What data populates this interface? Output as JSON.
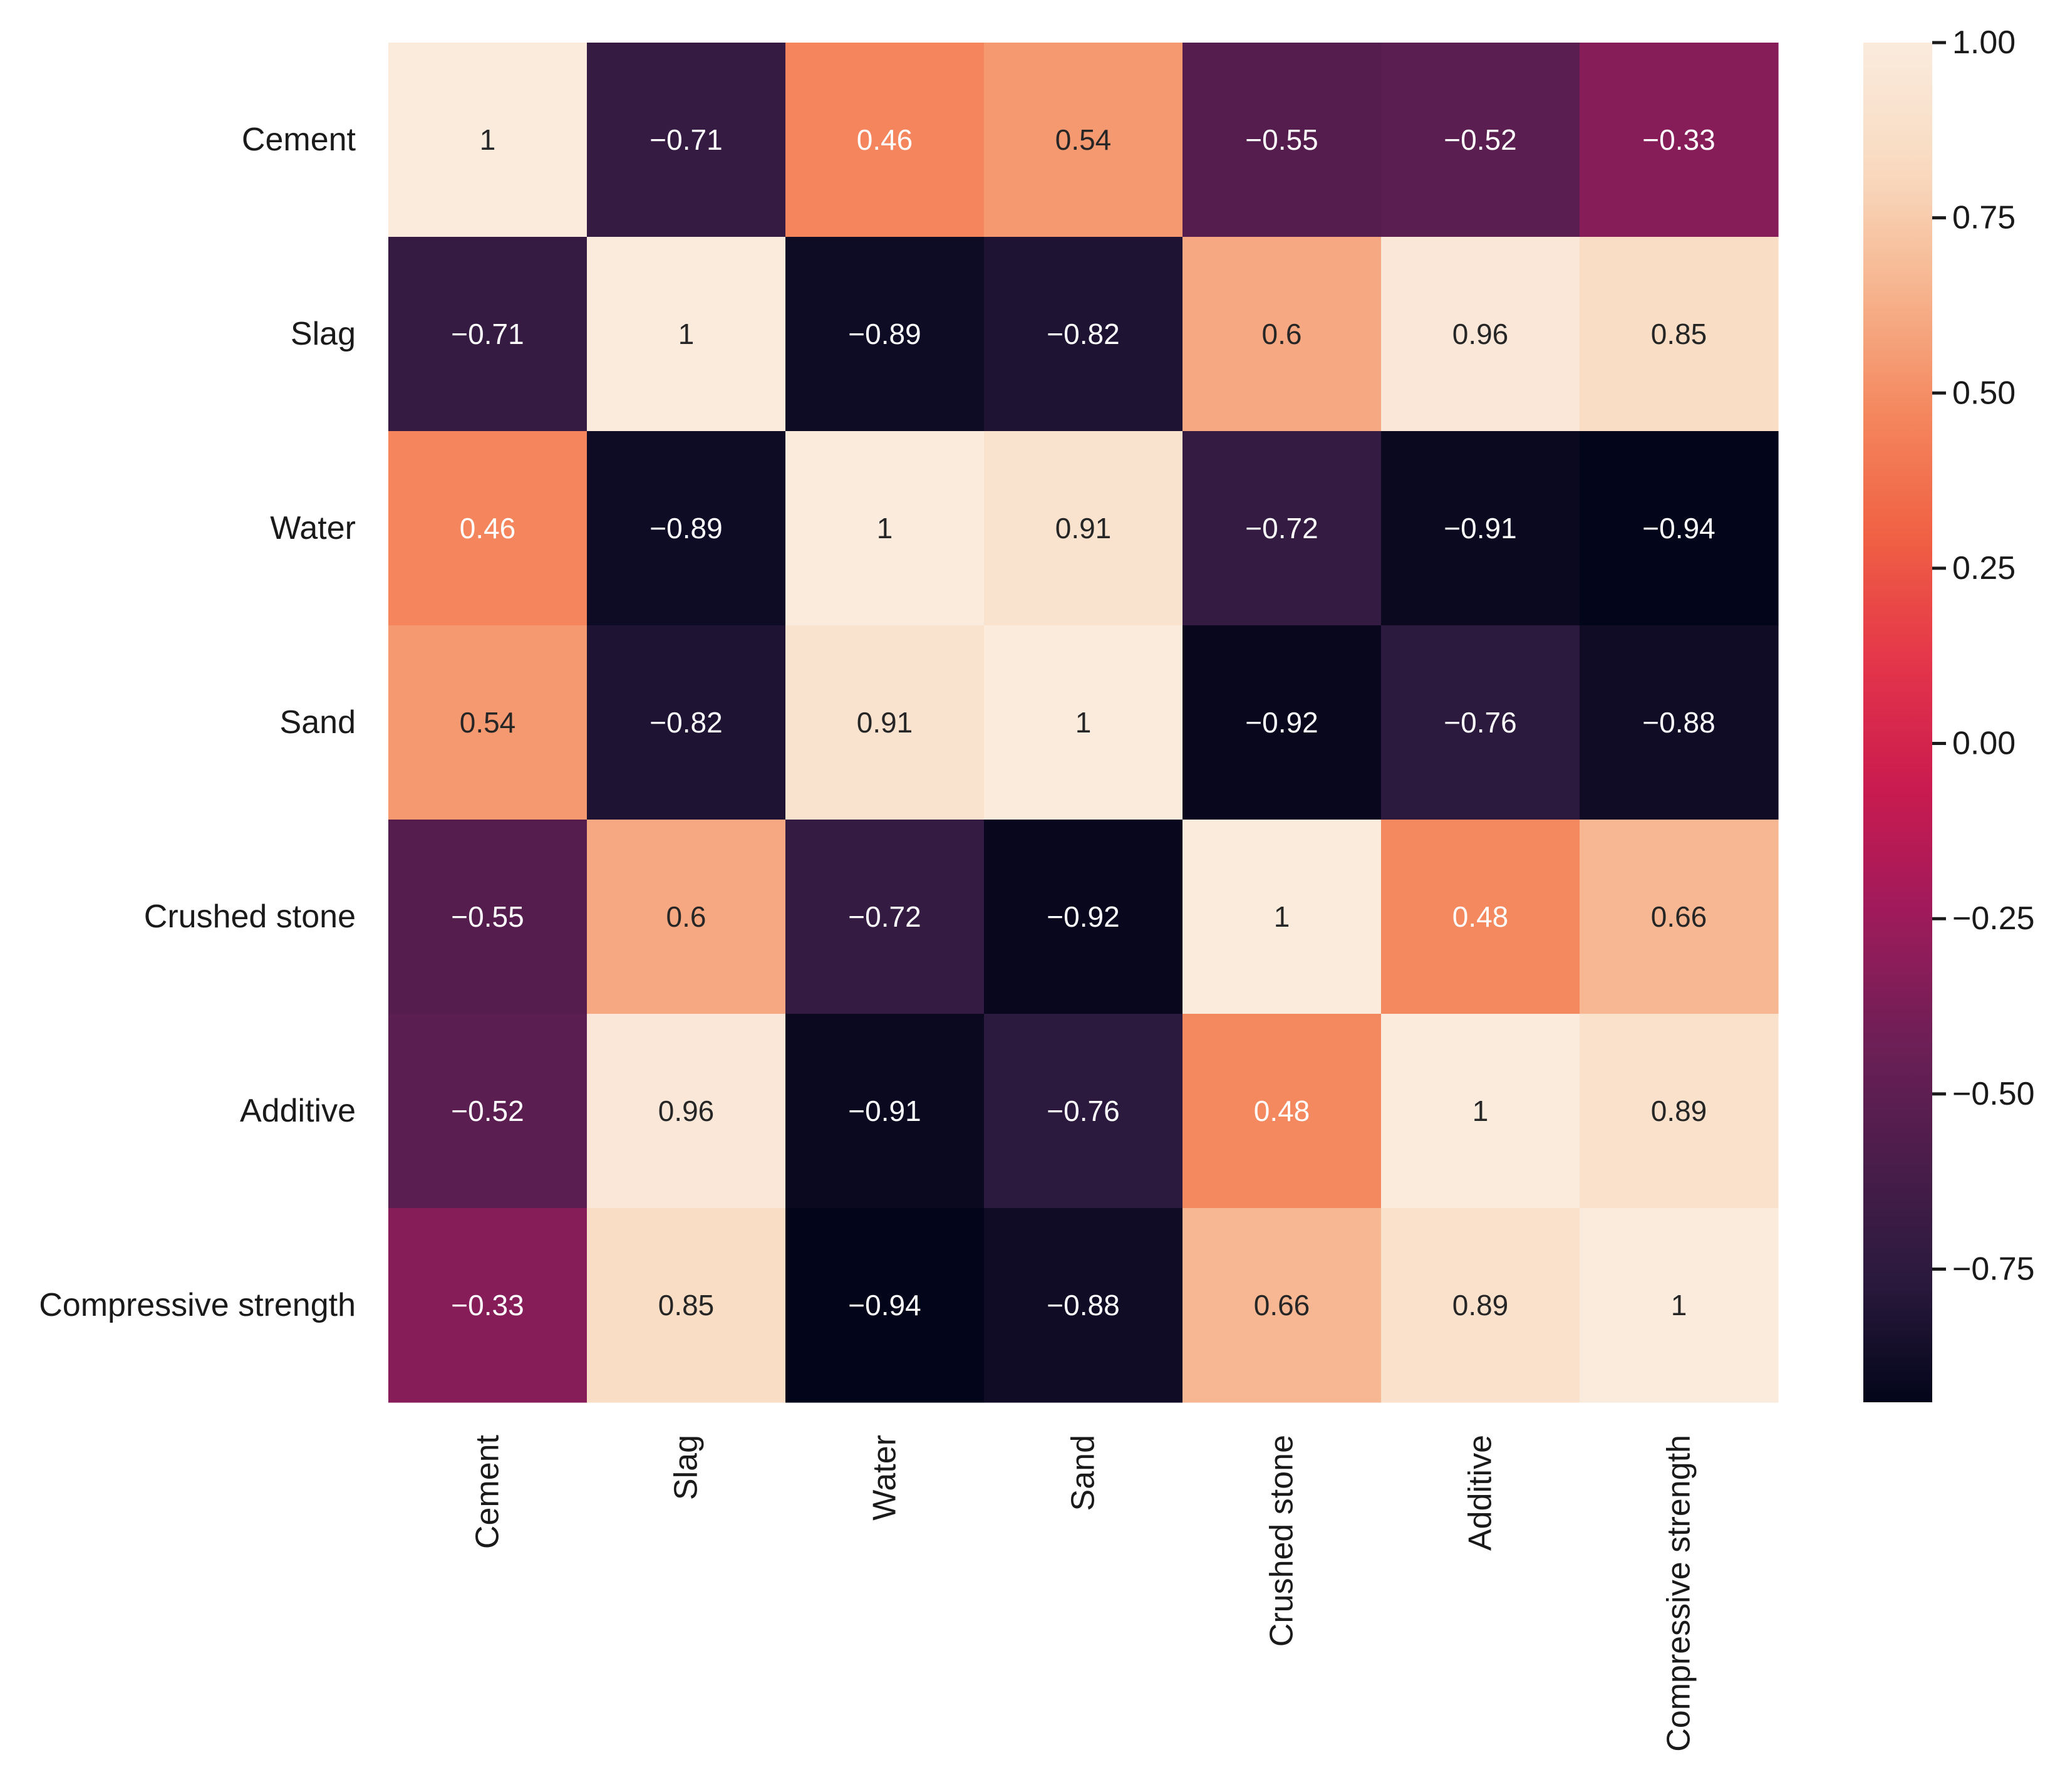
{
  "chart_data": {
    "type": "heatmap",
    "variables": [
      "Cement",
      "Slag",
      "Water",
      "Sand",
      "Crushed stone",
      "Additive",
      "Compressive strength"
    ],
    "matrix": [
      [
        1,
        -0.71,
        0.46,
        0.54,
        -0.55,
        -0.52,
        -0.33
      ],
      [
        -0.71,
        1,
        -0.89,
        -0.82,
        0.6,
        0.96,
        0.85
      ],
      [
        0.46,
        -0.89,
        1,
        0.91,
        -0.72,
        -0.91,
        -0.94
      ],
      [
        0.54,
        -0.82,
        0.91,
        1,
        -0.92,
        -0.76,
        -0.88
      ],
      [
        -0.55,
        0.6,
        -0.72,
        -0.92,
        1,
        0.48,
        0.66
      ],
      [
        -0.52,
        0.96,
        -0.91,
        -0.76,
        0.48,
        1,
        0.89
      ],
      [
        -0.33,
        0.85,
        -0.94,
        -0.88,
        0.66,
        0.89,
        1
      ]
    ],
    "annotations": [
      [
        "1",
        "−0.71",
        "0.46",
        "0.54",
        "−0.55",
        "−0.52",
        "−0.33"
      ],
      [
        "−0.71",
        "1",
        "−0.89",
        "−0.82",
        "0.6",
        "0.96",
        "0.85"
      ],
      [
        "0.46",
        "−0.89",
        "1",
        "0.91",
        "−0.72",
        "−0.91",
        "−0.94"
      ],
      [
        "0.54",
        "−0.82",
        "0.91",
        "1",
        "−0.92",
        "−0.76",
        "−0.88"
      ],
      [
        "−0.55",
        "0.6",
        "−0.72",
        "−0.92",
        "1",
        "0.48",
        "0.66"
      ],
      [
        "−0.52",
        "0.96",
        "−0.91",
        "−0.76",
        "0.48",
        "1",
        "0.89"
      ],
      [
        "−0.33",
        "0.85",
        "−0.94",
        "−0.88",
        "0.66",
        "0.89",
        "1"
      ]
    ],
    "colorbar": {
      "range": [
        -0.94,
        1.0
      ],
      "ticks": [
        1.0,
        0.75,
        0.5,
        0.25,
        0.0,
        -0.25,
        -0.5,
        -0.75
      ],
      "tick_labels": [
        "1.00",
        "0.75",
        "0.50",
        "0.25",
        "0.00",
        "−0.25",
        "−0.50",
        "−0.75"
      ],
      "colormap": "rocket",
      "colormap_stops": [
        "#03051a",
        "#2b1a3e",
        "#4c1d4b",
        "#701f57",
        "#a11a5b",
        "#cb1b4f",
        "#e4364a",
        "#f06043",
        "#f4875e",
        "#f6b48e",
        "#f9dbc1",
        "#faebdd"
      ]
    },
    "title": "",
    "xlabel": "",
    "ylabel": "",
    "grid": false
  }
}
